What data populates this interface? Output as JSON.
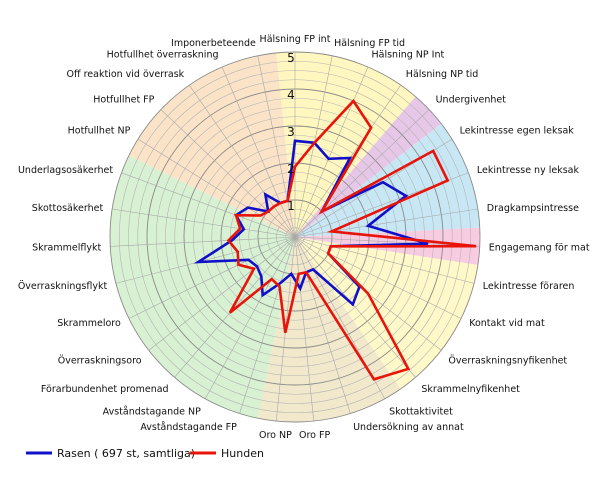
{
  "chart_data": {
    "type": "radar",
    "rmax": 5,
    "radial_ticks": [
      "1",
      "2",
      "3",
      "4",
      "5"
    ],
    "categories": [
      "Hälsning FP int",
      "Hälsning FP tid",
      "Hälsning NP Int",
      "Hälsning NP tid",
      "Undergivenhet",
      "Lekintresse egen leksak",
      "Lekintresse ny leksak",
      "Dragkampsintresse",
      "Engagemang för mat",
      "Lekintresse föraren",
      "Kontakt vid mat",
      "Överraskningsnyfikenhet",
      "Skrammelnyfikenhet",
      "Skottaktivitet",
      "Undersökning av annat",
      "Oro FP",
      "Oro NP",
      "Avståndstagande FP",
      "Avståndstagande NP",
      "Förarbundenhet promenad",
      "Överraskningsoro",
      "Skrammeloro",
      "Överraskningsflykt",
      "Skrammelflykt",
      "Skottosäkerhet",
      "Underlagsosäkerhet",
      "Hotfullhet NP",
      "Hotfullhet FP",
      "Off reaktion vid överrask",
      "Hotfullhet överraskning",
      "Imponerbeteende"
    ],
    "series": [
      {
        "name": "Rasen ( 697 st, samtliga)",
        "color": "#1010c8",
        "values": [
          2.6,
          2.6,
          2.3,
          2.6,
          1.0,
          2.8,
          3.2,
          2.0,
          3.6,
          1.0,
          1.0,
          2.2,
          2.4,
          1.0,
          1.0,
          1.4,
          1.0,
          1.3,
          1.8,
          1.4,
          1.3,
          1.4,
          2.7,
          1.7,
          1.4,
          1.7,
          1.5,
          1.0,
          1.4,
          1.0,
          1.0
        ]
      },
      {
        "name": "Hunden",
        "color": "#e8140a",
        "values": [
          1.9,
          2.6,
          4.0,
          3.6,
          1.0,
          4.4,
          4.4,
          1.0,
          4.9,
          1.0,
          1.0,
          2.5,
          4.7,
          4.4,
          1.0,
          1.0,
          2.6,
          1.4,
          1.3,
          2.7,
          1.4,
          1.7,
          1.6,
          1.8,
          1.5,
          1.7,
          1.1,
          1.0,
          1.0,
          1.0,
          1.0
        ]
      }
    ],
    "background_sectors": [
      {
        "from": 0,
        "to": 3,
        "color": "#fff7bf"
      },
      {
        "from": 4,
        "to": 4,
        "color": "#e7c7e7"
      },
      {
        "from": 5,
        "to": 7,
        "color": "#c8e7f5"
      },
      {
        "from": 8,
        "to": 8,
        "color": "#f7cce1"
      },
      {
        "from": 9,
        "to": 12,
        "color": "#fff8c8"
      },
      {
        "from": 13,
        "to": 16,
        "color": "#f2e8cb"
      },
      {
        "from": 17,
        "to": 25,
        "color": "#d7f1d2"
      },
      {
        "from": 26,
        "to": 30,
        "color": "#fbe3c8"
      }
    ],
    "legend_position": "bottom-left"
  }
}
